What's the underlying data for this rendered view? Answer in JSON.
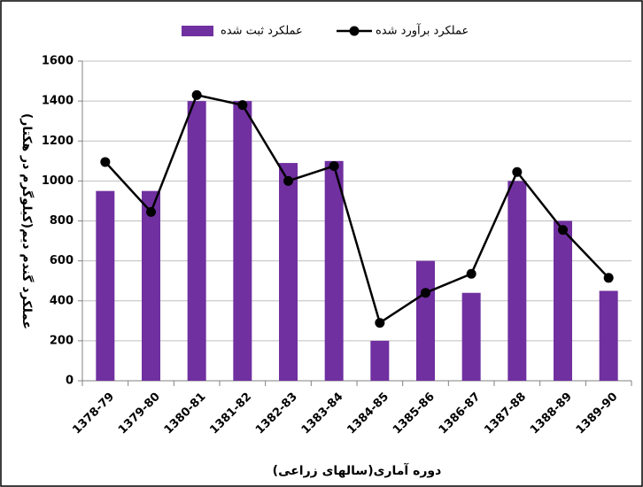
{
  "chart_data": {
    "type": "bar",
    "categories": [
      "1378-79",
      "1379-80",
      "1380-81",
      "1381-82",
      "1382-83",
      "1383-84",
      "1384-85",
      "1385-86",
      "1386-87",
      "1387-88",
      "1388-89",
      "1389-90"
    ],
    "series": [
      {
        "name": "عملکرد ثبت شده",
        "kind": "bar",
        "color": "#7030a0",
        "values": [
          950,
          950,
          1400,
          1400,
          1090,
          1100,
          200,
          600,
          440,
          1000,
          800,
          450
        ]
      },
      {
        "name": "عملکرد برآورد شده",
        "kind": "line",
        "color": "#000000",
        "values": [
          1095,
          845,
          1430,
          1380,
          1000,
          1075,
          290,
          440,
          535,
          1045,
          755,
          515
        ]
      }
    ],
    "x_label": "دوره آماری(سالهای زراعی)",
    "y_label": "عملکرد گندم دیم(کیلوگرم در هکتار)",
    "ylim": [
      0,
      1600
    ],
    "yticks": [
      0,
      200,
      400,
      600,
      800,
      1000,
      1200,
      1400,
      1600
    ],
    "grid": true
  }
}
